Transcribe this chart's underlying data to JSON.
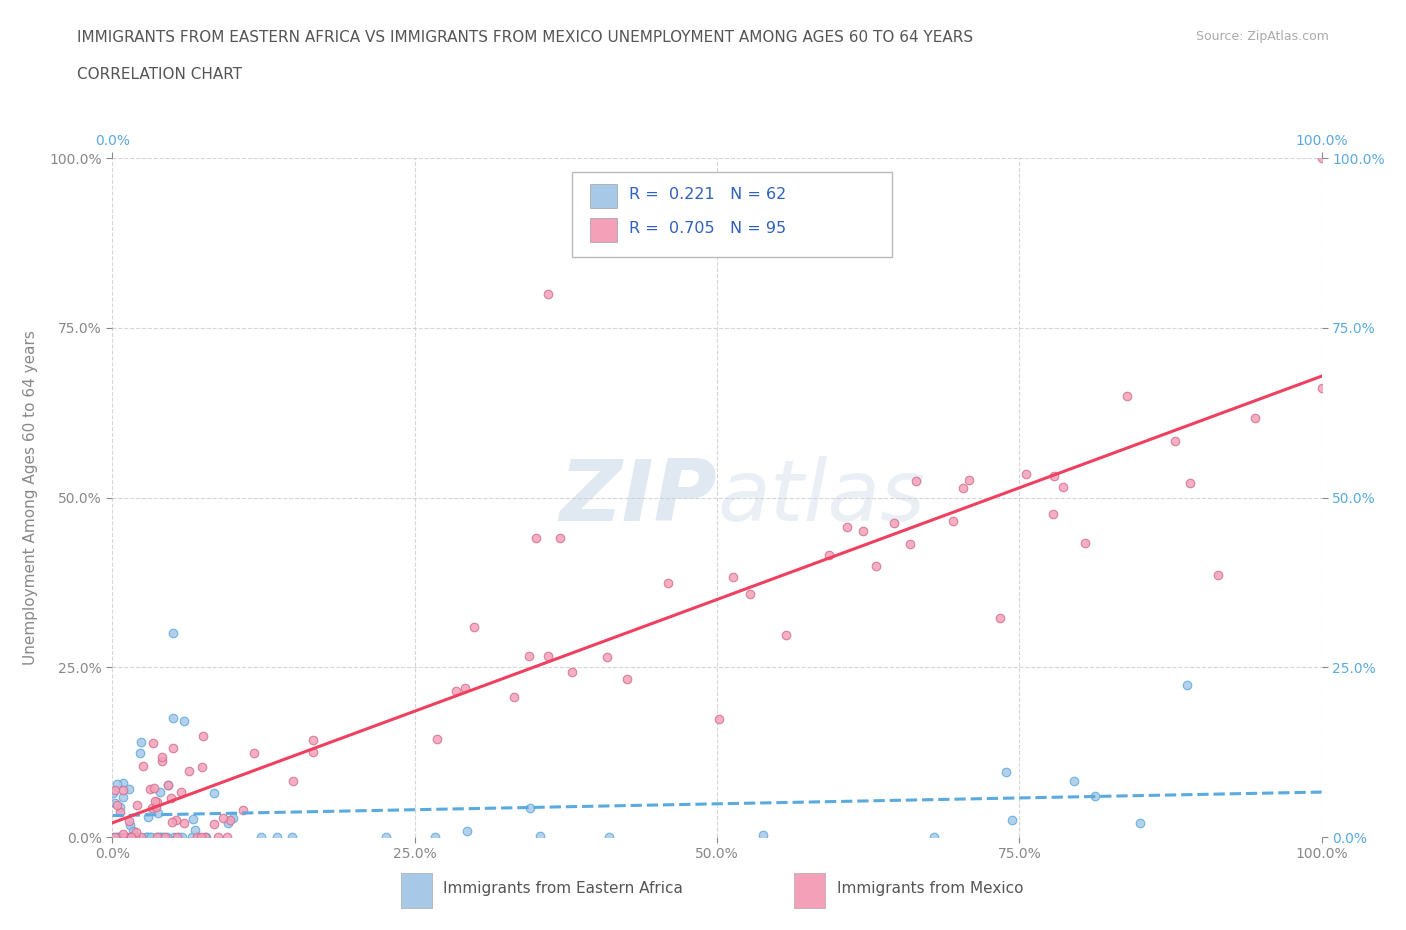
{
  "title_line1": "IMMIGRANTS FROM EASTERN AFRICA VS IMMIGRANTS FROM MEXICO UNEMPLOYMENT AMONG AGES 60 TO 64 YEARS",
  "title_line2": "CORRELATION CHART",
  "source_text": "Source: ZipAtlas.com",
  "ylabel": "Unemployment Among Ages 60 to 64 years",
  "xlim": [
    0.0,
    1.0
  ],
  "ylim": [
    0.0,
    1.0
  ],
  "xtick_vals": [
    0.0,
    0.25,
    0.5,
    0.75,
    1.0
  ],
  "ytick_vals": [
    0.0,
    0.25,
    0.5,
    0.75,
    1.0
  ],
  "color_eastern_africa": "#a8c8e8",
  "color_mexico": "#f4a0b8",
  "line_color_eastern_africa": "#5aaae0",
  "line_color_mexico": "#f04060",
  "R_eastern_africa": 0.221,
  "N_eastern_africa": 62,
  "R_mexico": 0.705,
  "N_mexico": 95,
  "background_color": "#ffffff",
  "grid_color": "#cccccc",
  "title_color": "#555555",
  "axis_color": "#888888",
  "right_label_color": "#5aaae0"
}
